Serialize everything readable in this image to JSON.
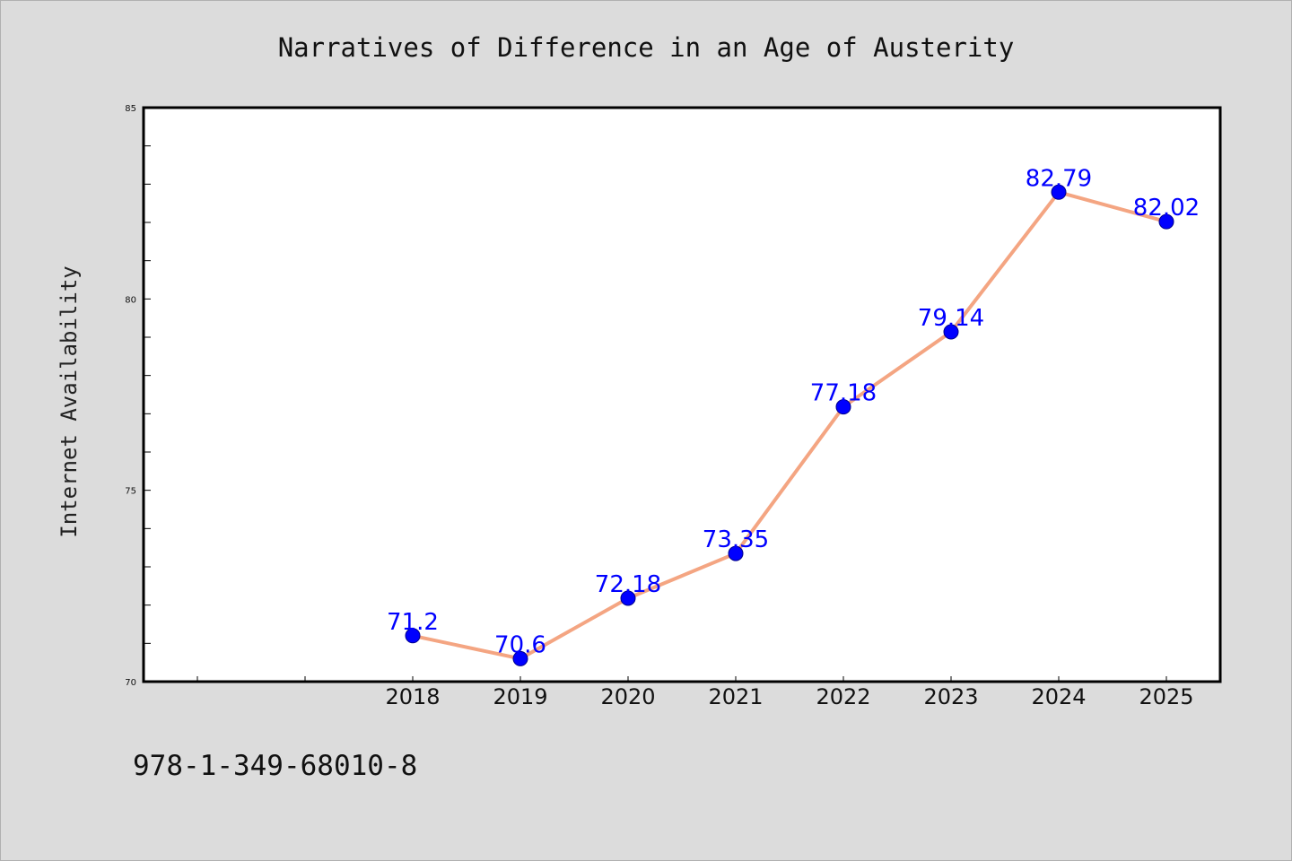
{
  "chart_data": {
    "type": "line",
    "title": "Narratives of Difference in an Age of Austerity",
    "ylabel": "Internet Availability",
    "xlabel": "",
    "x": [
      "2018",
      "2019",
      "2020",
      "2021",
      "2022",
      "2023",
      "2024",
      "2025"
    ],
    "series": [
      {
        "values": [
          71.2,
          70.6,
          72.18,
          73.35,
          77.18,
          79.14,
          82.79,
          82.02
        ],
        "labels": [
          "71.2",
          "70.6",
          "72.18",
          "73.35",
          "77.18",
          "79.14",
          "82.79",
          "82.02"
        ]
      }
    ],
    "ylim": [
      70,
      85
    ],
    "yticks": [
      "70",
      "75",
      "80",
      "85"
    ],
    "grid": false,
    "line_color": "#f4a582",
    "marker_color": "#0000ff",
    "label_color": "#0000ff",
    "background": "#dcdcdc"
  },
  "footer": {
    "isbn": "978-1-349-68010-8"
  }
}
